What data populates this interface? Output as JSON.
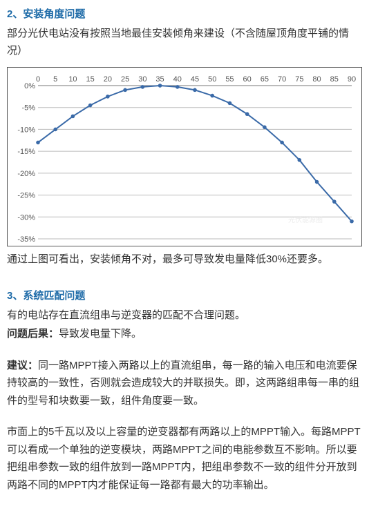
{
  "section2": {
    "heading": "2、安装角度问题",
    "intro": "部分光伏电站没有按照当地最佳安装倾角来建设（不含随屋顶角度平铺的情况）",
    "conclusion": "通过上图可看出，安装倾角不对，最多可导致发电量降低30%还要多。"
  },
  "chart": {
    "type": "line",
    "x_categories": [
      "0",
      "5",
      "10",
      "15",
      "20",
      "25",
      "30",
      "35",
      "40",
      "45",
      "50",
      "55",
      "60",
      "65",
      "70",
      "75",
      "80",
      "85",
      "90"
    ],
    "y_values": [
      -13,
      -10,
      -7,
      -4.5,
      -2.5,
      -1,
      -0.3,
      0,
      -0.3,
      -1,
      -2.3,
      -4,
      -6.5,
      -9.5,
      -13,
      -17,
      -22,
      -26.5,
      -31
    ],
    "ylim": [
      -35,
      0
    ],
    "ytick_step": 5,
    "y_tick_labels": [
      "0%",
      "-5%",
      "-10%",
      "-15%",
      "-20%",
      "-25%",
      "-30%",
      "-35%"
    ],
    "line_color": "#3a6aa8",
    "grid_color": "#bbbbbb",
    "background_color": "#ffffff",
    "marker_radius": 2.8,
    "label_fontsize": 11,
    "watermark": "光伏能源圈"
  },
  "section3": {
    "heading": "3、系统匹配问题",
    "line1": "有的电站存在直流组串与逆变器的匹配不合理问题。",
    "consequence_label": "问题后果：",
    "consequence_text": "导致发电量下降。",
    "suggestion_label": "建议：",
    "suggestion_text": "同一路MPPT接入两路以上的直流组串，每一路的输入电压和电流要保持较高的一致性，否则就会造成较大的并联损失。即，这两路组串每一串的组件的型号和块数要一致，组件角度要一致。",
    "para2": "市面上的5千瓦以及以上容量的逆变器都有两路以上的MPPT输入。每路MPPT可以看成一个单独的逆变模块，两路MPPT之间的电能参数互不影响。所以要把组串参数一致的组件放到一路MPPT内，把组串参数不一致的组件分开放到两路不同的MPPT内才能保证每一路都有最大的功率输出。"
  }
}
